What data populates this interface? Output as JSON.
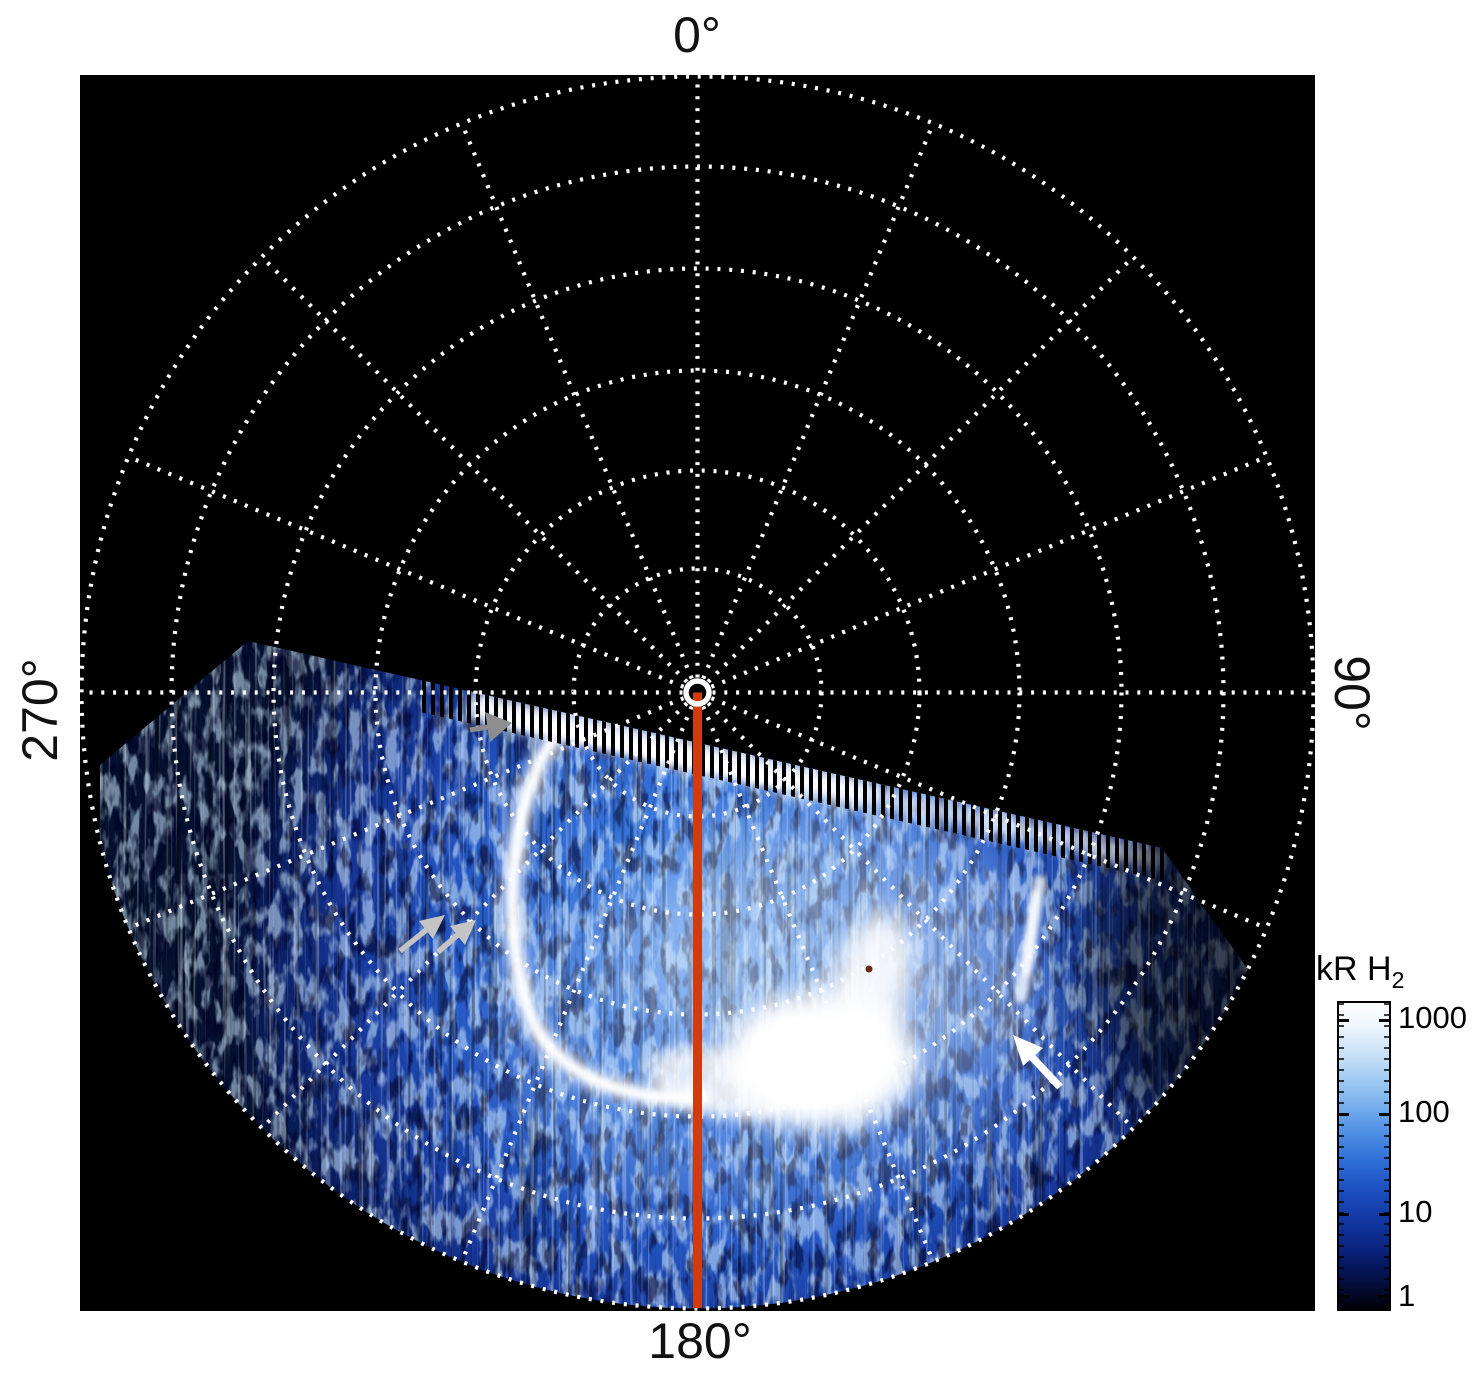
{
  "plot": {
    "angle_label_top": "0°",
    "angle_label_right": "90°",
    "angle_label_bottom": "180°",
    "angle_label_left": "270°"
  },
  "colorbar": {
    "title_main": "kR H",
    "title_sub": "2",
    "ticks": [
      "1000",
      "100",
      "10",
      "1"
    ],
    "scale": "log"
  },
  "chart_data": {
    "type": "heatmap",
    "projection": "polar_azimuthal",
    "title": "",
    "angular_tick_labels": [
      "0°",
      "90°",
      "180°",
      "270°"
    ],
    "angular_grid_step_deg": 22.5,
    "radial_grid_rings": 6,
    "grid_style": "white dotted",
    "background": "black",
    "colorbar": {
      "label": "kR H2",
      "scale": "log",
      "tick_values": [
        1000,
        100,
        10,
        1
      ],
      "colormap": "white-lightblue-blue-darkblue-black (high to low)"
    },
    "series": [
      {
        "name": "H2 auroral emission",
        "description": "Patchy blue emission (~1-100 kR) filling the sector from about 95° through 180° to about 275° azimuth; black (no data) over the rest of the polar projection"
      },
      {
        "name": "main auroral arc",
        "description": "Bright (~1000 kR) white crescent arc west of the 180° meridian curving from the upper data boundary down toward a bright bulge near 180°"
      },
      {
        "name": "bright emission patch",
        "description": "Saturated white patch near 170°-200° azimuth at mid radius"
      },
      {
        "name": "boundary fringe",
        "description": "Bright white fringe with comb-like dark gaps along the slanted upper data boundary"
      },
      {
        "name": "secondary bright streak",
        "description": "Short bright streak near 120° azimuth at mid radius"
      }
    ],
    "annotations": [
      {
        "type": "line",
        "label": "180 degree meridian line",
        "color": "#d13b0e",
        "from": "pole (center)",
        "to": "outer edge at 180°"
      },
      {
        "type": "arrow",
        "color": "gray",
        "direction": "pointing right",
        "points_to": "boundary fringe near 255° azimuth"
      },
      {
        "type": "arrow",
        "color": "light gray",
        "count": 2,
        "direction": "pointing upper-right",
        "points_to": "main arc features near 230° azimuth"
      },
      {
        "type": "arrow",
        "color": "white",
        "direction": "pointing upper-left",
        "points_to": "emission feature near 120° azimuth"
      },
      {
        "type": "marker",
        "color": "white ring",
        "label": "pole marker at projection center"
      }
    ]
  }
}
